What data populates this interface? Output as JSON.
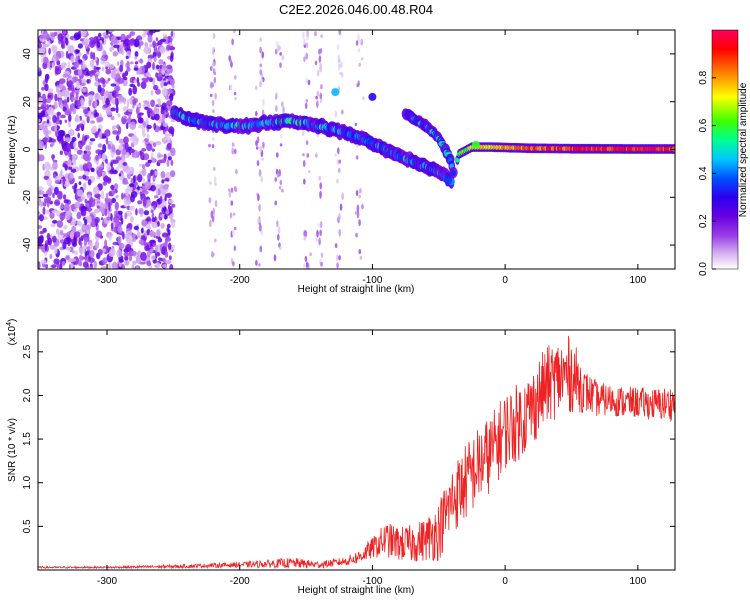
{
  "figure": {
    "title": "C2E2.2026.046.00.48.R04"
  },
  "colors": {
    "background": "#ffffff",
    "axis": "#000000",
    "snr_line": "#ee2222",
    "colormap": [
      "#ffffff",
      "#d9b8f0",
      "#9a3ee8",
      "#6a00e0",
      "#2a00f0",
      "#0050ff",
      "#00c8ff",
      "#00ff90",
      "#40ff00",
      "#ffff00",
      "#ff8000",
      "#ff0000",
      "#ff0060"
    ]
  },
  "chart_data": [
    {
      "id": "spectrogram",
      "type": "heatmap",
      "xlabel": "Height of straight line (km)",
      "ylabel": "Frequency (Hz)",
      "xlim": [
        -352,
        128
      ],
      "ylim": [
        -50,
        50
      ],
      "xticks": [
        -300,
        -200,
        -100,
        0,
        100
      ],
      "yticks": [
        -40,
        -20,
        0,
        20,
        40
      ],
      "colorbar": {
        "label": "Normalized spectral amplitude",
        "range": [
          0,
          1
        ],
        "ticks": [
          "0.0",
          "0.2",
          "0.4",
          "0.6",
          "0.8"
        ]
      },
      "ridge": [
        {
          "x": -250,
          "y": 16,
          "amp": 0.5
        },
        {
          "x": -240,
          "y": 13,
          "amp": 0.5
        },
        {
          "x": -225,
          "y": 11,
          "amp": 0.45
        },
        {
          "x": -210,
          "y": 10,
          "amp": 0.5
        },
        {
          "x": -195,
          "y": 10,
          "amp": 0.5
        },
        {
          "x": -180,
          "y": 11,
          "amp": 0.5
        },
        {
          "x": -165,
          "y": 12,
          "amp": 0.55
        },
        {
          "x": -150,
          "y": 11,
          "amp": 0.5
        },
        {
          "x": -135,
          "y": 9,
          "amp": 0.5
        },
        {
          "x": -120,
          "y": 7,
          "amp": 0.45
        },
        {
          "x": -105,
          "y": 4,
          "amp": 0.45
        },
        {
          "x": -90,
          "y": 0,
          "amp": 0.45
        },
        {
          "x": -75,
          "y": -4,
          "amp": 0.45
        },
        {
          "x": -60,
          "y": -7,
          "amp": 0.45
        },
        {
          "x": -48,
          "y": -10,
          "amp": 0.5
        },
        {
          "x": -40,
          "y": -14,
          "amp": 0.4
        },
        {
          "x": -35,
          "y": -2,
          "amp": 0.6
        },
        {
          "x": -25,
          "y": 1,
          "amp": 0.7
        },
        {
          "x": -10,
          "y": 1,
          "amp": 0.8
        },
        {
          "x": 20,
          "y": 0.5,
          "amp": 0.9
        },
        {
          "x": 60,
          "y": 0.3,
          "amp": 0.95
        },
        {
          "x": 100,
          "y": 0.2,
          "amp": 0.95
        },
        {
          "x": 128,
          "y": 0.2,
          "amp": 0.95
        }
      ],
      "ridge2": [
        {
          "x": -75,
          "y": 15,
          "amp": 0.4
        },
        {
          "x": -60,
          "y": 10,
          "amp": 0.45
        },
        {
          "x": -50,
          "y": 5,
          "amp": 0.5
        },
        {
          "x": -42,
          "y": -3,
          "amp": 0.5
        },
        {
          "x": -38,
          "y": -12,
          "amp": 0.4
        }
      ]
    },
    {
      "id": "snr",
      "type": "line",
      "xlabel": "Height of straight line (km)",
      "ylabel": "SNR (10 * v/v)",
      "ylabel_multiplier": "(x10",
      "ylabel_multiplier_exp": "4",
      "ylabel_multiplier_close": ")",
      "xlim": [
        -352,
        128
      ],
      "ylim": [
        0,
        2.75
      ],
      "xticks": [
        -300,
        -200,
        -100,
        0,
        100
      ],
      "yticks": [
        "0.5",
        "1.0",
        "1.5",
        "2.0",
        "2.5"
      ],
      "series": [
        {
          "x": [
            -352,
            -300,
            -250,
            -200,
            -160,
            -140,
            -120,
            -110,
            -100,
            -90,
            -80,
            -70,
            -60,
            -50,
            -40,
            -30,
            -20,
            -10,
            0,
            10,
            20,
            30,
            40,
            50,
            60,
            70,
            80,
            90,
            100,
            110,
            120,
            128
          ],
          "y": [
            0.03,
            0.03,
            0.04,
            0.06,
            0.08,
            0.06,
            0.1,
            0.15,
            0.25,
            0.35,
            0.3,
            0.3,
            0.35,
            0.45,
            0.8,
            1.0,
            1.2,
            1.35,
            1.6,
            1.7,
            1.85,
            2.1,
            2.2,
            2.25,
            2.05,
            1.95,
            1.95,
            1.92,
            1.92,
            1.9,
            1.9,
            1.92
          ],
          "spread": [
            0.01,
            0.01,
            0.02,
            0.03,
            0.06,
            0.04,
            0.05,
            0.08,
            0.12,
            0.2,
            0.2,
            0.22,
            0.25,
            0.35,
            0.4,
            0.45,
            0.45,
            0.45,
            0.45,
            0.45,
            0.45,
            0.45,
            0.45,
            0.45,
            0.25,
            0.2,
            0.18,
            0.18,
            0.18,
            0.18,
            0.2,
            0.2
          ]
        }
      ]
    }
  ]
}
